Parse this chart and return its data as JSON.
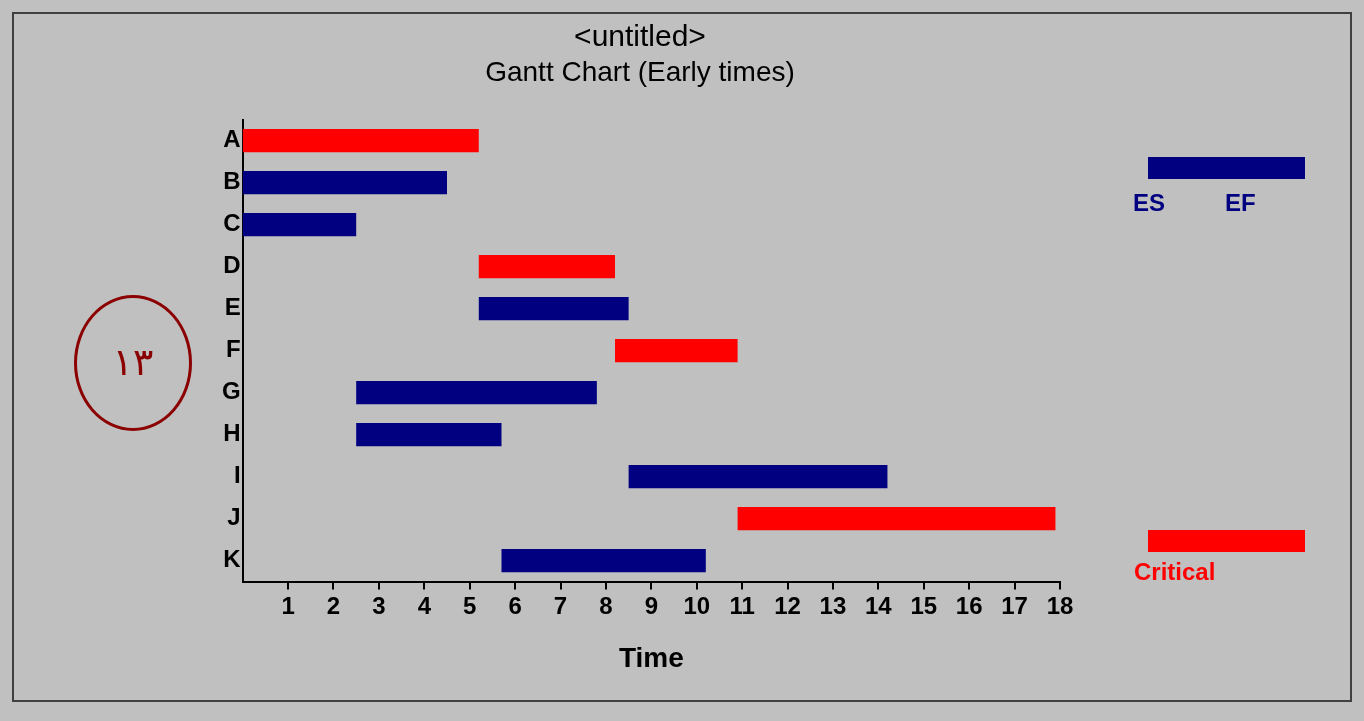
{
  "chart_data": {
    "type": "bar",
    "orientation": "horizontal",
    "title": "<untitled>",
    "subtitle": "Gantt Chart (Early times)",
    "xlabel": "Time",
    "categories": [
      "A",
      "B",
      "C",
      "D",
      "E",
      "F",
      "G",
      "H",
      "I",
      "J",
      "K"
    ],
    "series": [
      {
        "color": "#000080",
        "base": [
          null,
          0,
          0,
          null,
          5.2,
          null,
          2.5,
          2.5,
          8.5,
          null,
          5.7
        ],
        "values": [
          null,
          4.5,
          2.5,
          null,
          3.3,
          null,
          5.3,
          3.2,
          5.7,
          null,
          4.5
        ]
      },
      {
        "name": "Critical",
        "color": "#ff0000",
        "base": [
          0,
          null,
          null,
          5.2,
          null,
          8.2,
          null,
          null,
          null,
          10.9,
          null
        ],
        "values": [
          5.2,
          null,
          null,
          3.0,
          null,
          2.7,
          null,
          null,
          null,
          7.0,
          null
        ]
      }
    ],
    "xlim": [
      0,
      18
    ],
    "xticks": [
      1,
      2,
      3,
      4,
      5,
      6,
      7,
      8,
      9,
      10,
      11,
      12,
      13,
      14,
      15,
      16,
      17,
      18
    ],
    "legend": "right",
    "annotations": [
      "ES",
      "EF",
      "١٣"
    ]
  }
}
